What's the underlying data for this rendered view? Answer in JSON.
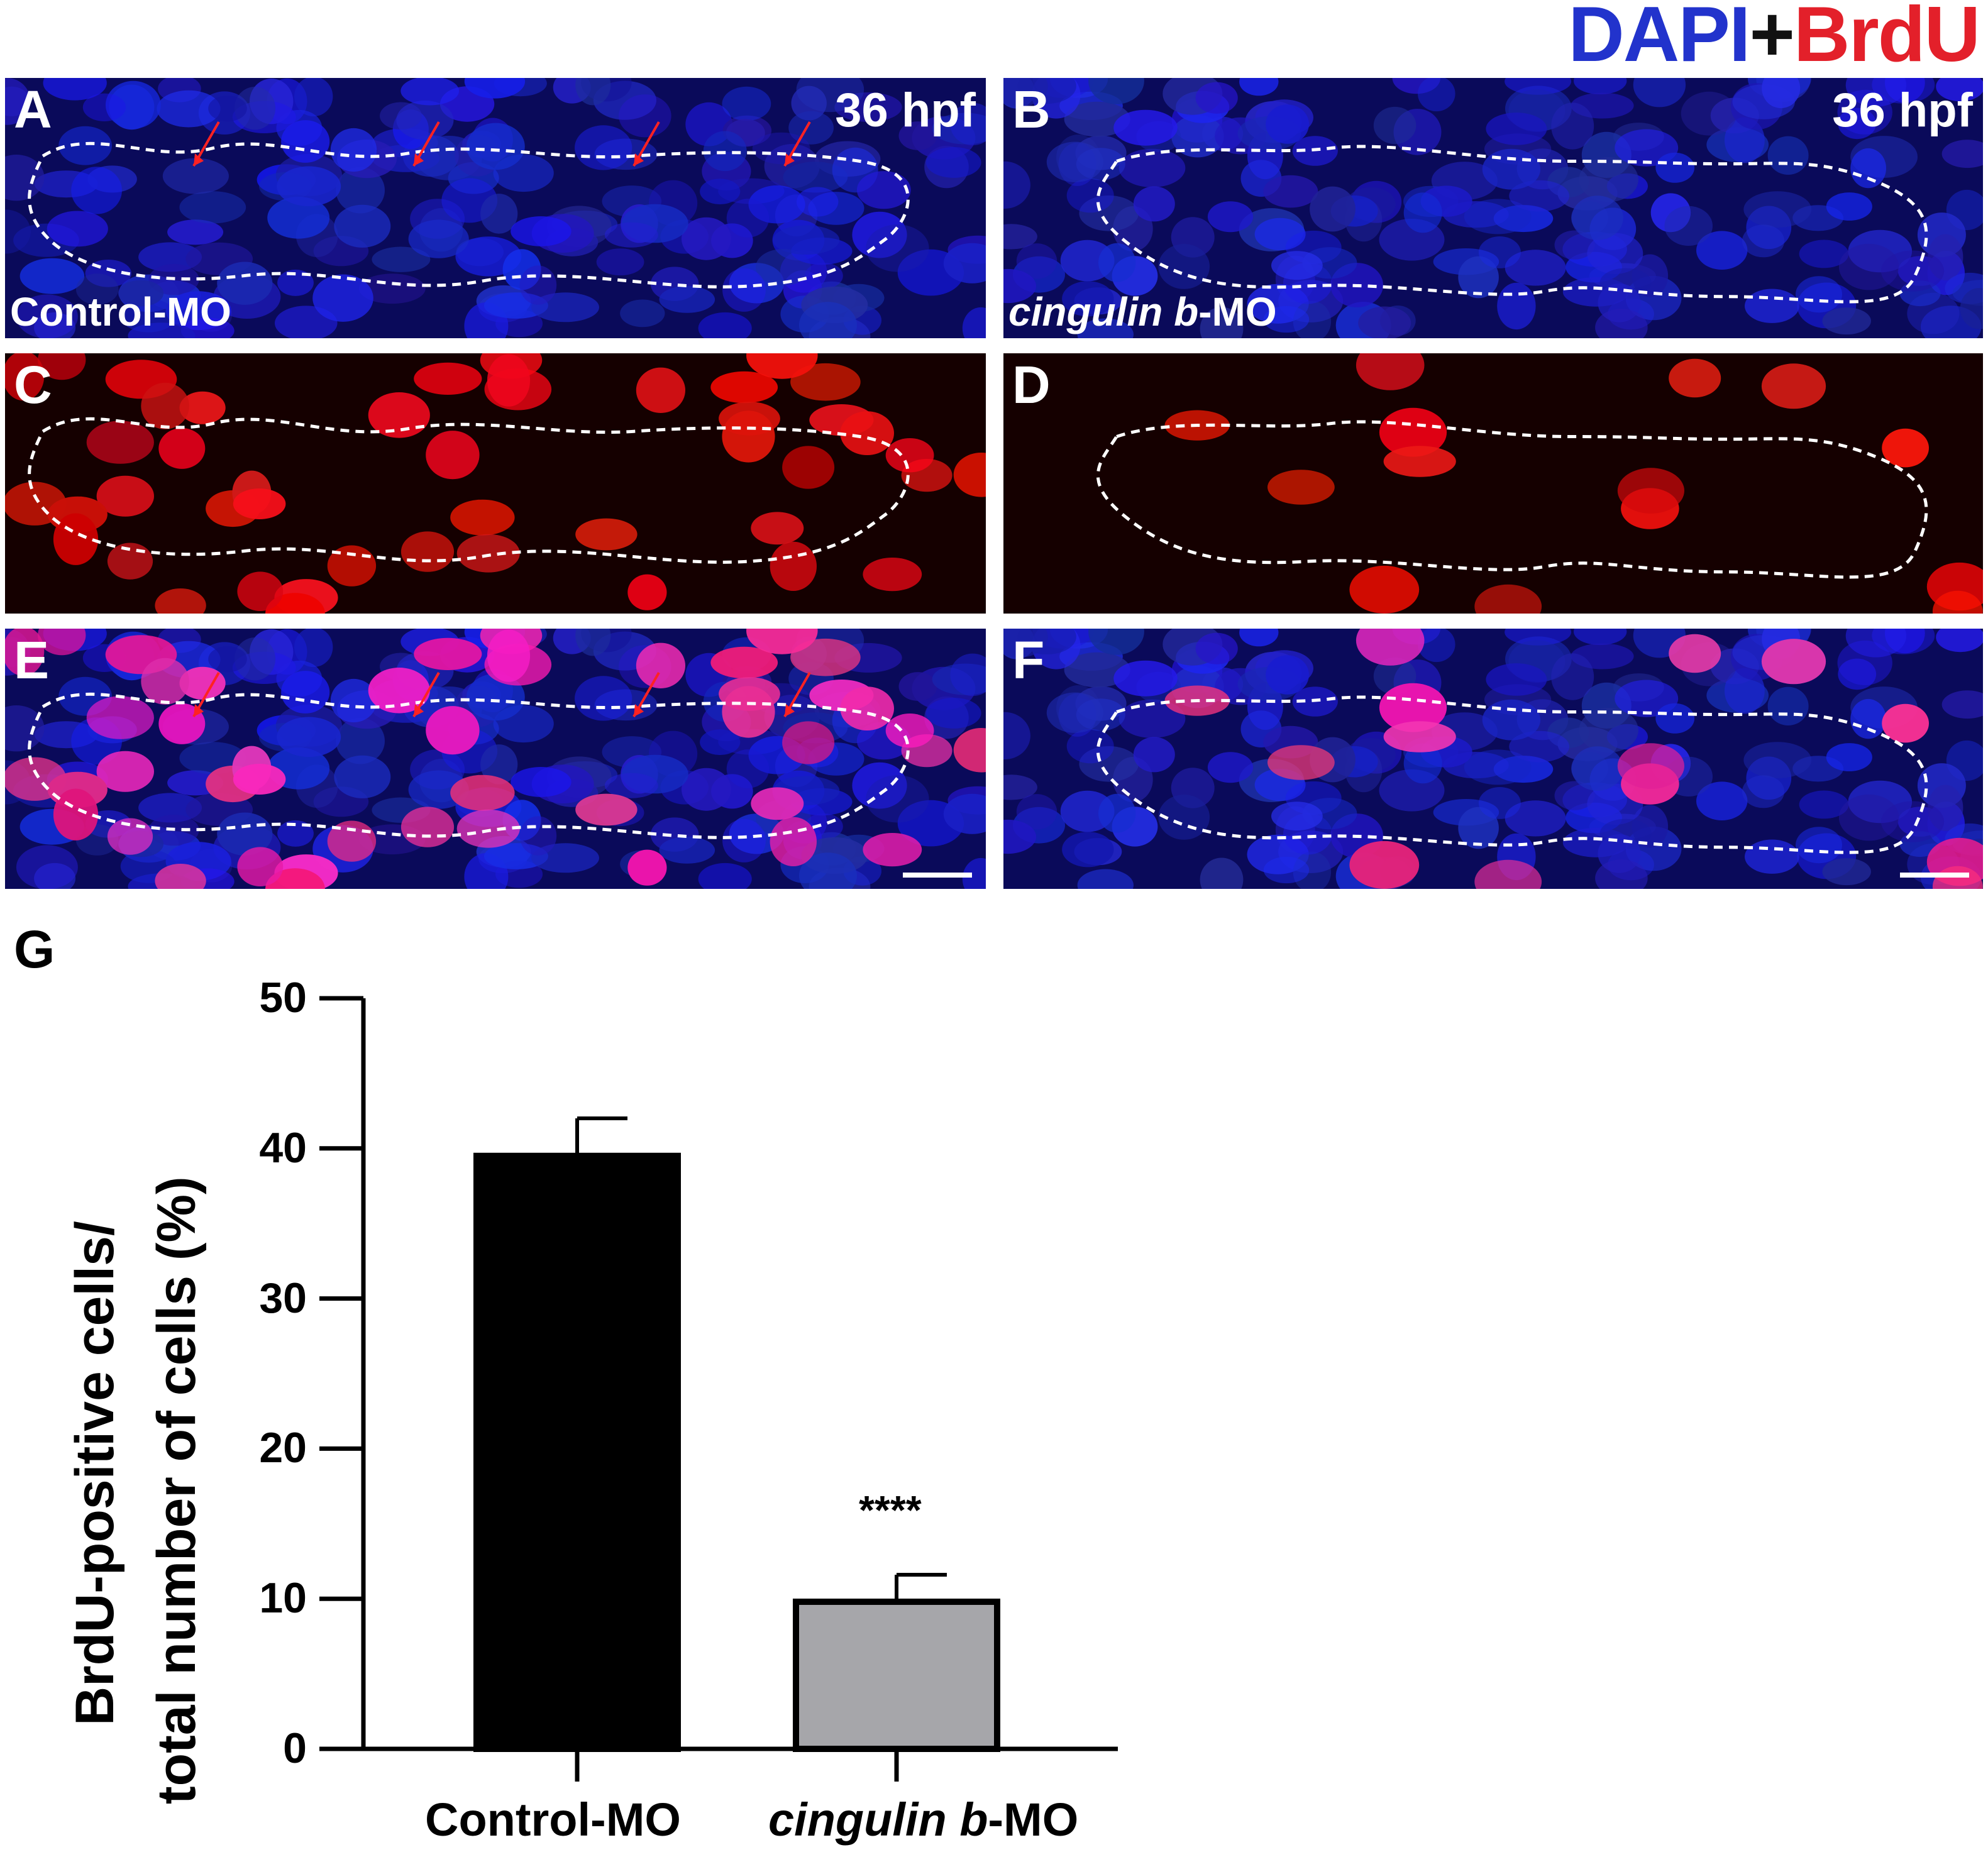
{
  "legend": {
    "dapi": "DAPI",
    "plus": "+",
    "brdu": "BrdU"
  },
  "panels": {
    "A": {
      "label": "A",
      "stage": "36 hpf",
      "mo": "Control-MO"
    },
    "B": {
      "label": "B",
      "stage": "36 hpf",
      "mo_italic": "cingulin b",
      "mo_rest": "-MO"
    },
    "C": {
      "label": "C"
    },
    "D": {
      "label": "D"
    },
    "E": {
      "label": "E"
    },
    "F": {
      "label": "F"
    }
  },
  "colors": {
    "dapi": "#1a1acc",
    "brdu": "#ff1a1a",
    "bar_control": "#000000",
    "bar_kd": "#a6a6aa"
  },
  "chart_label": "G",
  "chart_data": {
    "type": "bar",
    "categories": [
      "Control-MO",
      "cingulin b-MO"
    ],
    "values": [
      39.5,
      9.8
    ],
    "errors": [
      2.5,
      1.8
    ],
    "ylabel_line1": "BrdU-positive cells/",
    "ylabel_line2": "total number of cells (%)",
    "ylim": [
      0,
      50
    ],
    "yticks": [
      0,
      10,
      20,
      30,
      40,
      50
    ],
    "annotations": [
      {
        "category": "cingulin b-MO",
        "text": "****"
      }
    ],
    "grid": false,
    "legend": "none"
  },
  "cat_labels": {
    "control": "Control-MO",
    "kd_italic": "cingulin b",
    "kd_rest": "-MO"
  }
}
